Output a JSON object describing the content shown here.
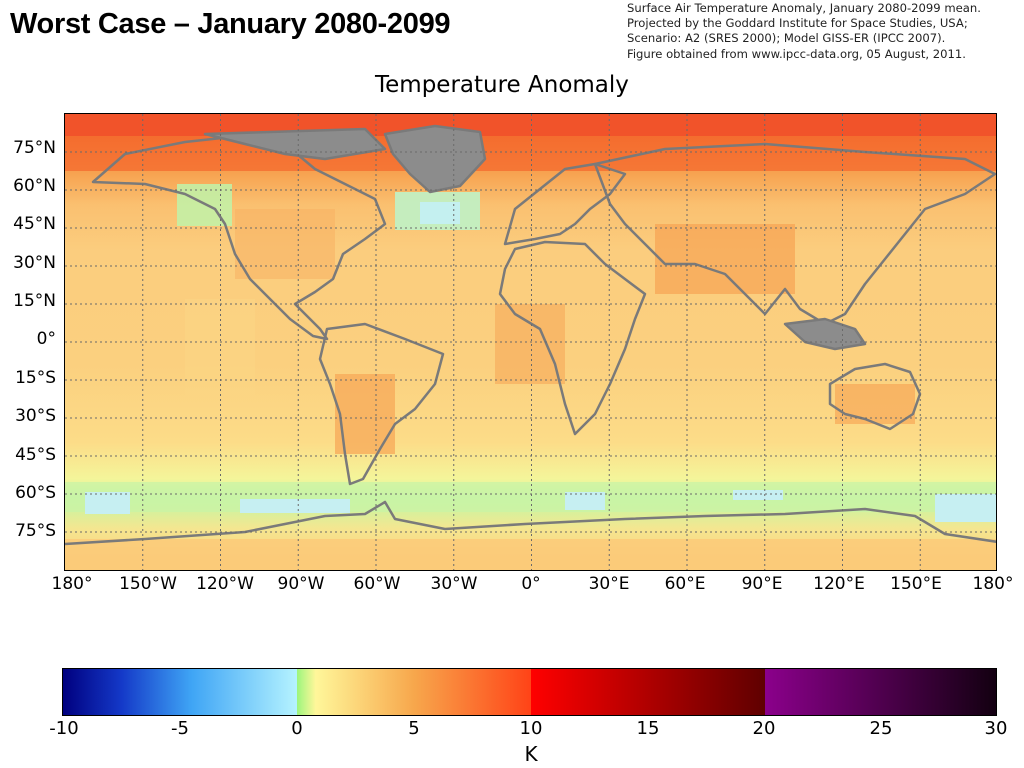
{
  "slide": {
    "title": "Worst Case – January 2080-2099"
  },
  "credits": {
    "lines": [
      "Surface Air Temperature Anomaly, January 2080-2099 mean.",
      "Projected by the Goddard Institute for Space Studies, USA;",
      "Scenario: A2 (SRES 2000); Model GISS-ER (IPCC 2007).",
      "Figure obtained from www.ipcc-data.org, 05 August, 2011."
    ]
  },
  "map": {
    "title": "Temperature Anomaly",
    "projection": "equirectangular",
    "graticule": "dotted",
    "coastline_color": "#7f7f7f",
    "lat_ticks": [
      "75°N",
      "60°N",
      "45°N",
      "30°N",
      "15°N",
      "0°",
      "15°S",
      "30°S",
      "45°S",
      "60°S",
      "75°S"
    ],
    "lon_ticks": [
      "180°",
      "150°W",
      "120°W",
      "90°W",
      "60°W",
      "30°W",
      "0°",
      "30°E",
      "60°E",
      "90°E",
      "120°E",
      "150°E",
      "180°"
    ]
  },
  "colorbar": {
    "unit": "K",
    "ticks": [
      "-10",
      "-5",
      "0",
      "5",
      "10",
      "15",
      "20",
      "25",
      "30"
    ],
    "range": [
      -10,
      30
    ],
    "colors": {
      "min": "#00007f",
      "blue_mid": "#3fa5f5",
      "cyan": "#b5f3ff",
      "zero_green": "#9cf57d",
      "yellow": "#fff79a",
      "orange": "#f7a74c",
      "red_orange": "#ff4317",
      "red": "#ff0000",
      "dark_red": "#5f0000",
      "purple": "#8b008b",
      "black": "#120010"
    }
  }
}
